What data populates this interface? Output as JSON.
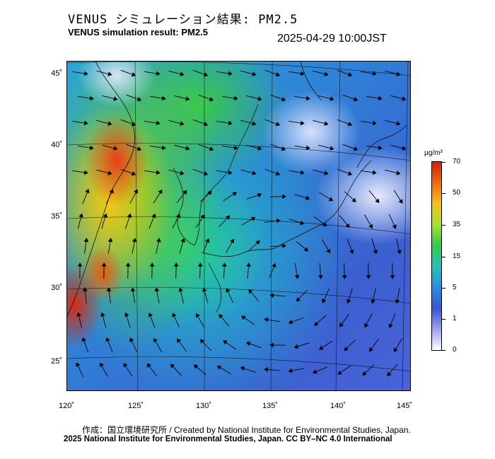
{
  "title": {
    "japanese": "VENUS シミュレーション結果: PM2.5",
    "english": "VENUS simulation result: PM2.5"
  },
  "datetime": "2025-04-29 10:00JST",
  "map": {
    "latitude_labels": [
      "45˚",
      "40˚",
      "35˚",
      "30˚",
      "25˚"
    ],
    "longitude_labels": [
      "120˚",
      "125˚",
      "130˚",
      "135˚",
      "140˚",
      "145˚"
    ],
    "colors": {
      "land_border": "#000000",
      "wind_arrow": "#000000",
      "graticule": "#000000"
    }
  },
  "colorbar": {
    "unit": "μg/m³",
    "ticks": [
      "70",
      "50",
      "35",
      "15",
      "5",
      "1",
      "0"
    ],
    "colors": [
      "#d4200c",
      "#f06a10",
      "#f7c21a",
      "#a8e02a",
      "#34c94e",
      "#22c4b8",
      "#2a8ee0",
      "#3558d6",
      "#9aa2ee",
      "#ffffff"
    ]
  },
  "credits": {
    "line1": "作成：国立環境研究所 / Created by National Institute for Environmental Studies, Japan.",
    "line2": "2025 National Institute for Environmental Studies, Japan. CC BY–NC 4.0 International"
  }
}
